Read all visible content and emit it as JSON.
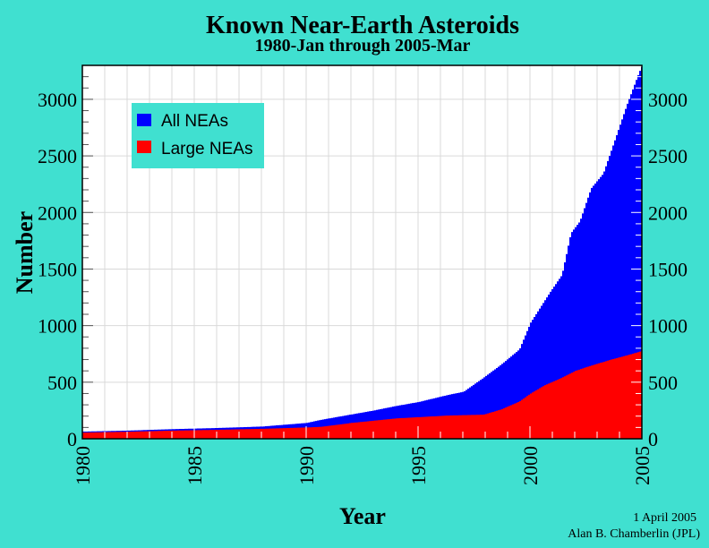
{
  "colors": {
    "background": "#40E0D0",
    "all": "#0000FF",
    "large": "#FF0000",
    "grid": "#D9D9D9"
  },
  "chart_data": {
    "type": "area",
    "title": "Known Near-Earth Asteroids",
    "subtitle": "1980-Jan through 2005-Mar",
    "xlabel": "Year",
    "ylabel": "Number",
    "xlim": [
      1980,
      2005
    ],
    "ylim": [
      0,
      3300
    ],
    "xticks": [
      "1980",
      "1985",
      "1990",
      "1995",
      "2000",
      "2005"
    ],
    "yticks": [
      "0",
      "500",
      "1000",
      "1500",
      "2000",
      "2500",
      "3000"
    ],
    "grid": true,
    "legend_position": "top-left",
    "series": [
      {
        "name": "All NEAs",
        "color": "#0000FF",
        "x": [
          1980,
          1982,
          1984,
          1986,
          1988,
          1990,
          1990.6,
          1992,
          1993,
          1994,
          1995,
          1996.3,
          1997,
          1997.9,
          1998.7,
          1999.5,
          2000,
          2000.85,
          2001.4,
          2001.8,
          2002.2,
          2002.7,
          2003.25,
          2003.8,
          2004.3,
          2004.85,
          2005
        ],
        "values": [
          63,
          72,
          85,
          95,
          108,
          140,
          166,
          215,
          250,
          290,
          325,
          387,
          415,
          540,
          658,
          790,
          1027,
          1290,
          1448,
          1817,
          1922,
          2212,
          2345,
          2660,
          2950,
          3240,
          3300
        ]
      },
      {
        "name": "Large NEAs",
        "color": "#FF0000",
        "x": [
          1980,
          1982,
          1984,
          1986,
          1988,
          1990,
          1990.6,
          1992,
          1994,
          1996.3,
          1997.9,
          1998.7,
          1999.5,
          2000,
          2000.6,
          2001.4,
          2002,
          2002.6,
          2003.6,
          2004.3,
          2005
        ],
        "values": [
          55,
          62,
          72,
          79,
          88,
          100,
          105,
          140,
          180,
          205,
          213,
          260,
          330,
          400,
          470,
          540,
          600,
          640,
          700,
          737,
          777
        ]
      }
    ]
  },
  "footer": {
    "date": "1 April 2005",
    "author": "Alan B. Chamberlin (JPL)"
  }
}
